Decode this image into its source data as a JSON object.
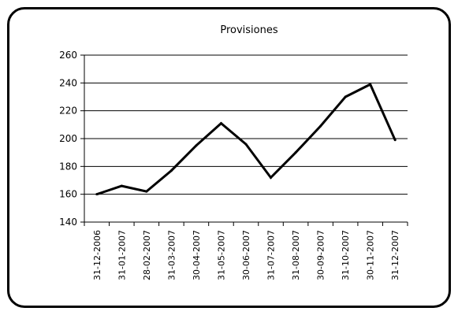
{
  "chart_data": {
    "type": "line",
    "title": "Provisiones",
    "xlabel": "",
    "ylabel": "",
    "ylim": [
      140,
      260
    ],
    "ytick_step": 20,
    "grid": true,
    "legend": "none",
    "line_color": "#000000",
    "categories": [
      "31-12-2006",
      "31-01-2007",
      "28-02-2007",
      "31-03-2007",
      "30-04-2007",
      "31-05-2007",
      "30-06-2007",
      "31-07-2007",
      "31-08-2007",
      "30-09-2007",
      "31-10-2007",
      "30-11-2007",
      "31-12-2007"
    ],
    "values": [
      160,
      166,
      162,
      177,
      195,
      211,
      196,
      172,
      190,
      209,
      230,
      239,
      199
    ]
  }
}
